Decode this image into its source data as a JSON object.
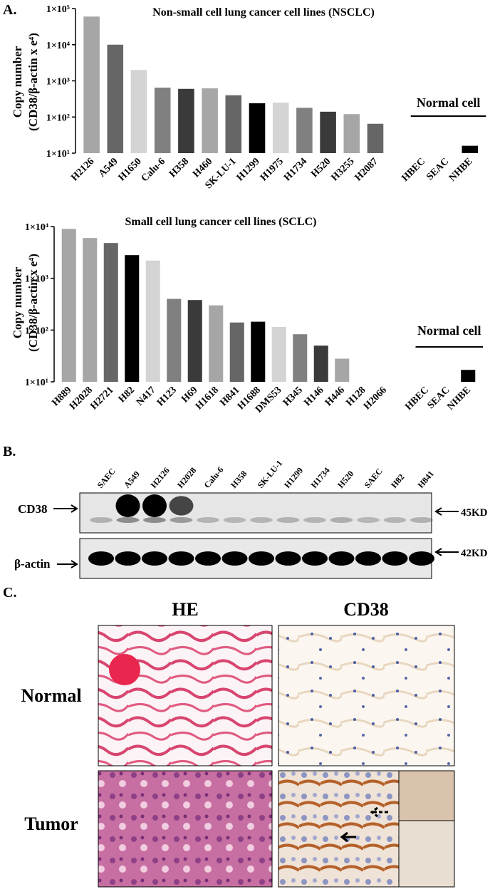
{
  "panel_labels": [
    "A.",
    "B.",
    "C."
  ],
  "chart_data": [
    {
      "type": "bar",
      "title": "Non-small cell lung cancer cell lines (NSCLC)",
      "ylabel": [
        "Copy number",
        "(CD38/β-actin x e⁴)"
      ],
      "log_scale": true,
      "categories": [
        "H2126",
        "A549",
        "H1650",
        "Calu-6",
        "H358",
        "H460",
        "SK-LU-1",
        "H1299",
        "H1975",
        "H1734",
        "H520",
        "H3255",
        "H2087",
        null,
        "HBEC",
        "SEAC",
        "NHBE"
      ],
      "values": [
        60000,
        10000,
        2000,
        650,
        600,
        620,
        400,
        240,
        250,
        180,
        140,
        120,
        65,
        null,
        null,
        null,
        16
      ],
      "colors": [
        "#a6a6a6",
        "#666666",
        "#d4d4d4",
        "#808080",
        "#3a3a3a",
        "#a6a6a6",
        "#666666",
        "#000000",
        "#d4d4d4",
        "#808080",
        "#3a3a3a",
        "#a6a6a6",
        "#666666",
        null,
        null,
        null,
        "#000000"
      ],
      "ylim": [
        10,
        100000
      ],
      "yticks": [
        {
          "value": 10,
          "label": "1×10¹"
        },
        {
          "value": 100,
          "label": "1×10²"
        },
        {
          "value": 1000,
          "label": "1×10³"
        },
        {
          "value": 10000,
          "label": "1×10⁴"
        },
        {
          "value": 100000,
          "label": "1×10⁵"
        }
      ],
      "annotation": "Normal cell"
    },
    {
      "type": "bar",
      "title": "Small cell lung cancer cell lines (SCLC)",
      "ylabel": [
        "Copy number",
        "(CD38/β-actin x e⁴)"
      ],
      "log_scale": true,
      "categories": [
        "H889",
        "H2028",
        "H2721",
        "H82",
        "N417",
        "H123",
        "H69",
        "H1618",
        "H841",
        "H1688",
        "DMS53",
        "H345",
        "H146",
        "H446",
        "H128",
        "H2066",
        null,
        "HBEC",
        "SEAC",
        "NHBE"
      ],
      "values": [
        9000,
        6000,
        4800,
        2800,
        2200,
        400,
        380,
        300,
        140,
        145,
        115,
        83,
        50,
        28,
        null,
        null,
        null,
        null,
        null,
        17
      ],
      "colors": [
        "#a6a6a6",
        "#a6a6a6",
        "#666666",
        "#000000",
        "#d4d4d4",
        "#808080",
        "#3a3a3a",
        "#a6a6a6",
        "#666666",
        "#000000",
        "#d4d4d4",
        "#808080",
        "#3a3a3a",
        "#a6a6a6",
        null,
        null,
        null,
        null,
        null,
        "#000000"
      ],
      "ylim": [
        10,
        10000
      ],
      "yticks": [
        {
          "value": 10,
          "label": "1×10¹"
        },
        {
          "value": 100,
          "label": "1×10²"
        },
        {
          "value": 1000,
          "label": "1×10³"
        },
        {
          "value": 10000,
          "label": "1×10⁴"
        }
      ],
      "annotation": "Normal cell"
    }
  ],
  "blot": {
    "lanes": [
      "SAEC",
      "A549",
      "H2126",
      "H2028",
      "Calu-6",
      "H358",
      "SK-LU-1",
      "H1299",
      "H1734",
      "H520",
      "SAEC",
      "H82",
      "H841"
    ],
    "rows": [
      "CD38",
      "β-actin"
    ],
    "sizes": [
      "45KD",
      "42KD"
    ]
  },
  "histology": {
    "columns": [
      "HE",
      "CD38"
    ],
    "rows": [
      "Normal",
      "Tumor"
    ]
  }
}
